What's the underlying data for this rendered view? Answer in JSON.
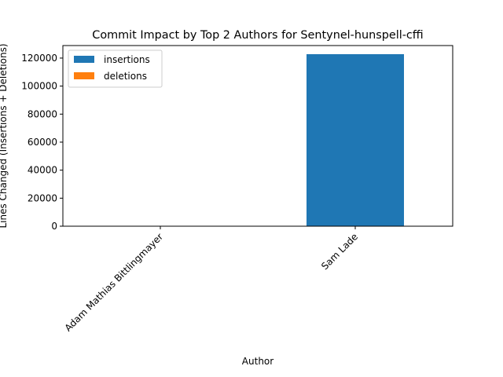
{
  "chart_data": {
    "type": "bar",
    "stacked": true,
    "title": "Commit Impact by Top 2 Authors for Sentynel-hunspell-cffi",
    "xlabel": "Author",
    "ylabel": "Lines Changed (Insertions + Deletions)",
    "categories": [
      "Adam Mathias Bittlingmayer",
      "Sam Lade"
    ],
    "series": [
      {
        "name": "insertions",
        "color": "#1f77b4",
        "values": [
          0,
          122800
        ]
      },
      {
        "name": "deletions",
        "color": "#ff7f0e",
        "values": [
          0,
          0
        ]
      }
    ],
    "ylim": [
      0,
      128940
    ],
    "yticks": [
      0,
      20000,
      40000,
      60000,
      80000,
      100000,
      120000
    ],
    "legend": "upper-left",
    "grid": false
  }
}
